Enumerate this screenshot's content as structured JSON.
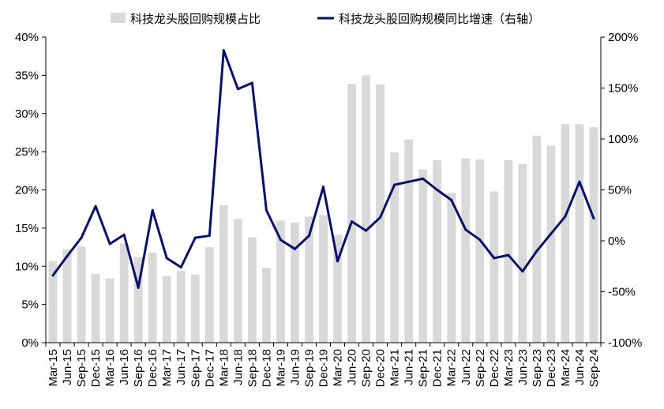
{
  "chart_data": {
    "type": "bar",
    "title": "",
    "xlabel": "",
    "ylabel": "",
    "categories": [
      "Mar-15",
      "Jun-15",
      "Sep-15",
      "Dec-15",
      "Mar-16",
      "Jun-16",
      "Sep-16",
      "Dec-16",
      "Mar-17",
      "Jun-17",
      "Sep-17",
      "Dec-17",
      "Mar-18",
      "Jun-18",
      "Sep-18",
      "Dec-18",
      "Mar-19",
      "Jun-19",
      "Sep-19",
      "Dec-19",
      "Mar-20",
      "Jun-20",
      "Sep-20",
      "Dec-20",
      "Mar-21",
      "Jun-21",
      "Sep-21",
      "Dec-21",
      "Mar-22",
      "Jun-22",
      "Sep-22",
      "Dec-22",
      "Mar-23",
      "Jun-23",
      "Sep-23",
      "Dec-23",
      "Mar-24",
      "Jun-24",
      "Sep-24"
    ],
    "series": [
      {
        "name": "科技龙头股回购规模占比",
        "type": "bar",
        "axis": "left",
        "color": "#d9d9d9",
        "values": [
          10.7,
          12.2,
          12.6,
          9.0,
          8.4,
          13.0,
          11.2,
          11.8,
          8.7,
          9.4,
          8.9,
          12.5,
          18.0,
          16.2,
          13.8,
          9.8,
          16.0,
          15.7,
          16.5,
          16.7,
          14.1,
          33.9,
          35.0,
          33.8,
          24.9,
          26.6,
          22.7,
          23.9,
          19.6,
          24.1,
          24.0,
          19.8,
          23.9,
          23.4,
          27.1,
          25.8,
          28.6,
          28.6,
          28.2
        ]
      },
      {
        "name": "科技龙头股回购规模同比增速（右轴）",
        "type": "line",
        "axis": "right",
        "color": "#0a0f6b",
        "values": [
          -34,
          -15,
          3,
          34,
          -3,
          6,
          -46,
          30,
          -17,
          -26,
          3,
          5,
          187,
          149,
          155,
          30,
          1,
          -8,
          5,
          53,
          -20,
          19,
          10,
          23,
          55,
          58,
          61,
          50,
          40,
          11,
          1,
          -17,
          -14,
          -30,
          -10,
          7,
          24,
          58,
          22
        ]
      }
    ],
    "y_left": {
      "min": 0,
      "max": 40,
      "step": 5,
      "unit": "%",
      "tick_labels": [
        "0%",
        "5%",
        "10%",
        "15%",
        "20%",
        "25%",
        "30%",
        "35%",
        "40%"
      ]
    },
    "y_right": {
      "min": -100,
      "max": 200,
      "step": 50,
      "unit": "%",
      "tick_labels": [
        "-100%",
        "-50%",
        "0%",
        "50%",
        "100%",
        "150%",
        "200%"
      ],
      "negative_label_color": "#ff0000"
    },
    "legend": {
      "position": "top-center"
    },
    "grid": false
  }
}
